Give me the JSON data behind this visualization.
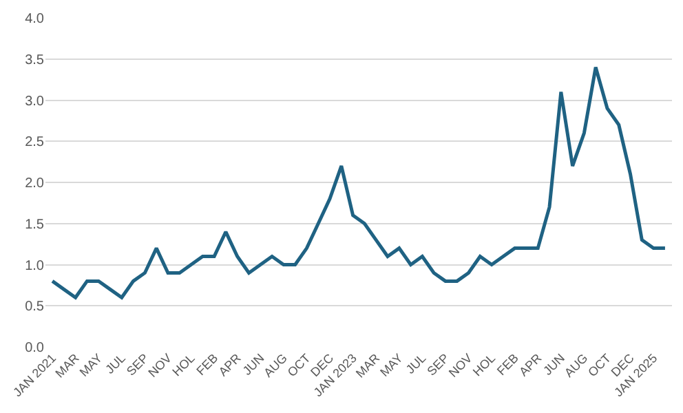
{
  "chart_data": {
    "type": "line",
    "categories": [
      "JAN 2021",
      null,
      "MAR",
      null,
      "MAY",
      null,
      "JUL",
      null,
      "SEP",
      null,
      "NOV",
      null,
      "HOL",
      null,
      "FEB",
      null,
      "APR",
      null,
      "JUN",
      null,
      "AUG",
      null,
      "OCT",
      null,
      "DEC",
      null,
      "JAN 2023",
      null,
      "MAR",
      null,
      "MAY",
      null,
      "JUL",
      null,
      "SEP",
      null,
      "NOV",
      null,
      "HOL",
      null,
      "FEB",
      null,
      "APR",
      null,
      "JUN",
      null,
      "AUG",
      null,
      "OCT",
      null,
      "DEC",
      null,
      "JAN 2025",
      null
    ],
    "series": [
      {
        "color": "#1f6283",
        "values": [
          0.8,
          0.7,
          0.6,
          0.8,
          0.8,
          0.7,
          0.6,
          0.8,
          0.9,
          1.2,
          0.9,
          0.9,
          1.0,
          1.1,
          1.1,
          1.4,
          1.1,
          0.9,
          1.0,
          1.1,
          1.0,
          1.0,
          1.2,
          1.5,
          1.8,
          2.2,
          1.6,
          1.5,
          1.3,
          1.1,
          1.2,
          1.0,
          1.1,
          0.9,
          0.8,
          0.8,
          0.9,
          1.1,
          1.0,
          1.1,
          1.2,
          1.2,
          1.2,
          1.7,
          3.1,
          2.2,
          2.6,
          3.4,
          2.9,
          2.7,
          2.1,
          1.3,
          1.2,
          1.2
        ]
      }
    ],
    "ylim": [
      0,
      4
    ],
    "yticks": [
      {
        "value": 0,
        "label": "0.0"
      },
      {
        "value": 0.5,
        "label": "0.5"
      },
      {
        "value": 1,
        "label": "1.0"
      },
      {
        "value": 1.5,
        "label": "1.5"
      },
      {
        "value": 2,
        "label": "2.0"
      },
      {
        "value": 2.5,
        "label": "2.5"
      },
      {
        "value": 3,
        "label": "3.0"
      },
      {
        "value": 3.5,
        "label": "3.5"
      },
      {
        "value": 4,
        "label": "4.0"
      }
    ],
    "grid": "y",
    "legend": false,
    "marker": "none",
    "line_style": "solid"
  }
}
